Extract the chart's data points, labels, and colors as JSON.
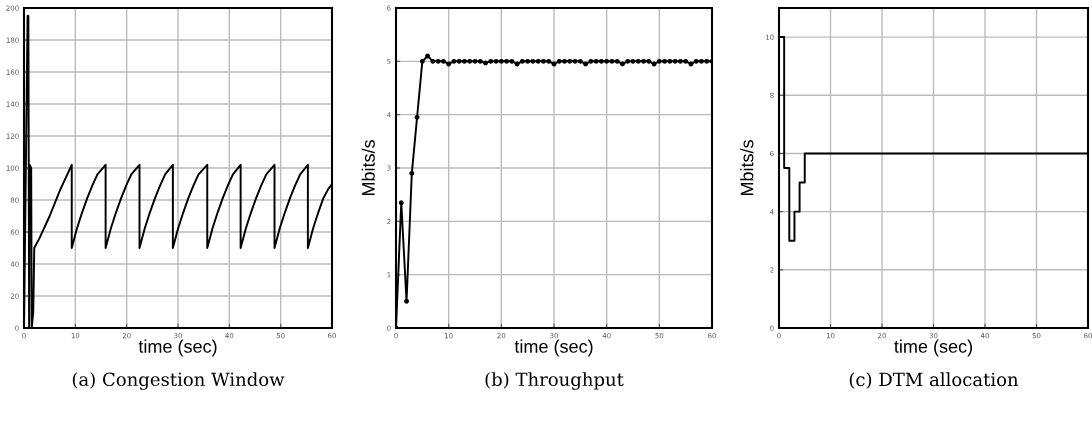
{
  "chart_data": [
    {
      "type": "line",
      "title": "(a) Congestion Window",
      "xlabel": "time (sec)",
      "xlim": [
        0,
        60
      ],
      "xticks": [
        0,
        10,
        20,
        30,
        40,
        50,
        60
      ],
      "ylim": [
        0,
        200
      ],
      "yticks": [
        0,
        20,
        40,
        60,
        80,
        100,
        120,
        140,
        160,
        180,
        200
      ],
      "grid": true,
      "marker": "none",
      "line_style": "solid",
      "series": [
        {
          "color": "#000000",
          "x": [
            0,
            0.7,
            0.85,
            1.0,
            1.1,
            1.4,
            1.5,
            1.8,
            2.0,
            3,
            5,
            7,
            9.3,
            9.3,
            10.3,
            11.3,
            12.3,
            13.3,
            14.3,
            15.9,
            15.9,
            16.9,
            17.9,
            18.9,
            19.9,
            20.9,
            22.5,
            22.5,
            23.5,
            24.5,
            25.5,
            26.5,
            27.5,
            29.0,
            29.0,
            30.0,
            31.0,
            32.0,
            33.0,
            34.0,
            35.7,
            35.7,
            36.7,
            37.7,
            38.7,
            39.7,
            40.7,
            42.2,
            42.2,
            43.2,
            44.2,
            45.2,
            46.2,
            47.2,
            48.8,
            48.8,
            49.8,
            50.8,
            51.8,
            52.8,
            53.8,
            55.3,
            55.3,
            56.3,
            57.3,
            58.3,
            59.3,
            60
          ],
          "values": [
            0,
            195,
            195,
            0,
            102,
            100,
            0,
            10,
            50,
            56,
            70,
            86,
            102,
            50,
            62,
            72,
            81,
            89,
            96,
            102,
            50,
            62,
            72,
            81,
            89,
            96,
            102,
            50,
            62,
            72,
            81,
            89,
            96,
            102,
            50,
            62,
            72,
            81,
            89,
            96,
            102,
            50,
            62,
            72,
            81,
            89,
            96,
            102,
            50,
            62,
            72,
            81,
            89,
            96,
            102,
            50,
            62,
            72,
            81,
            89,
            96,
            102,
            50,
            62,
            72,
            81,
            87,
            90
          ]
        }
      ]
    },
    {
      "type": "line",
      "title": "(b) Throughput",
      "xlabel": "time (sec)",
      "ylabel": "Mbits/s",
      "xlim": [
        0,
        60
      ],
      "xticks": [
        0,
        10,
        20,
        30,
        40,
        50,
        60
      ],
      "ylim": [
        0,
        6
      ],
      "yticks": [
        0,
        1,
        2,
        3,
        4,
        5,
        6
      ],
      "grid": true,
      "marker": "circle",
      "line_style": "solid",
      "series": [
        {
          "color": "#000000",
          "x": [
            0,
            1,
            2,
            3,
            4,
            5,
            6,
            7,
            8,
            9,
            10,
            11,
            12,
            13,
            14,
            15,
            16,
            17,
            18,
            19,
            20,
            21,
            22,
            23,
            24,
            25,
            26,
            27,
            28,
            29,
            30,
            31,
            32,
            33,
            34,
            35,
            36,
            37,
            38,
            39,
            40,
            41,
            42,
            43,
            44,
            45,
            46,
            47,
            48,
            49,
            50,
            51,
            52,
            53,
            54,
            55,
            56,
            57,
            58,
            59,
            60
          ],
          "values": [
            0,
            2.35,
            0.5,
            2.9,
            3.95,
            5.0,
            5.1,
            5.0,
            5.0,
            5.0,
            4.95,
            5.0,
            5.0,
            5.0,
            5.0,
            5.0,
            5.0,
            4.97,
            5.0,
            5.0,
            5.0,
            5.0,
            5.0,
            4.95,
            5.0,
            5.0,
            5.0,
            5.0,
            5.0,
            5.0,
            4.95,
            5.0,
            5.0,
            5.0,
            5.0,
            5.0,
            4.95,
            5.0,
            5.0,
            5.0,
            5.0,
            5.0,
            5.0,
            4.95,
            5.0,
            5.0,
            5.0,
            5.0,
            5.0,
            4.95,
            5.0,
            5.0,
            5.0,
            5.0,
            5.0,
            5.0,
            4.95,
            5.0,
            5.0,
            5.0,
            5.0
          ]
        }
      ]
    },
    {
      "type": "step",
      "title": "(c) DTM allocation",
      "xlabel": "time (sec)",
      "ylabel": "Mbits/s",
      "xlim": [
        0,
        60
      ],
      "xticks": [
        0,
        10,
        20,
        30,
        40,
        50,
        60
      ],
      "ylim": [
        0,
        11
      ],
      "yticks": [
        0,
        2,
        4,
        6,
        8,
        10
      ],
      "grid": true,
      "marker": "none",
      "line_style": "solid",
      "series": [
        {
          "color": "#000000",
          "x": [
            0,
            1,
            2,
            3,
            4,
            5,
            60
          ],
          "values": [
            10,
            5.5,
            3,
            4,
            5,
            6,
            6
          ]
        }
      ]
    }
  ]
}
